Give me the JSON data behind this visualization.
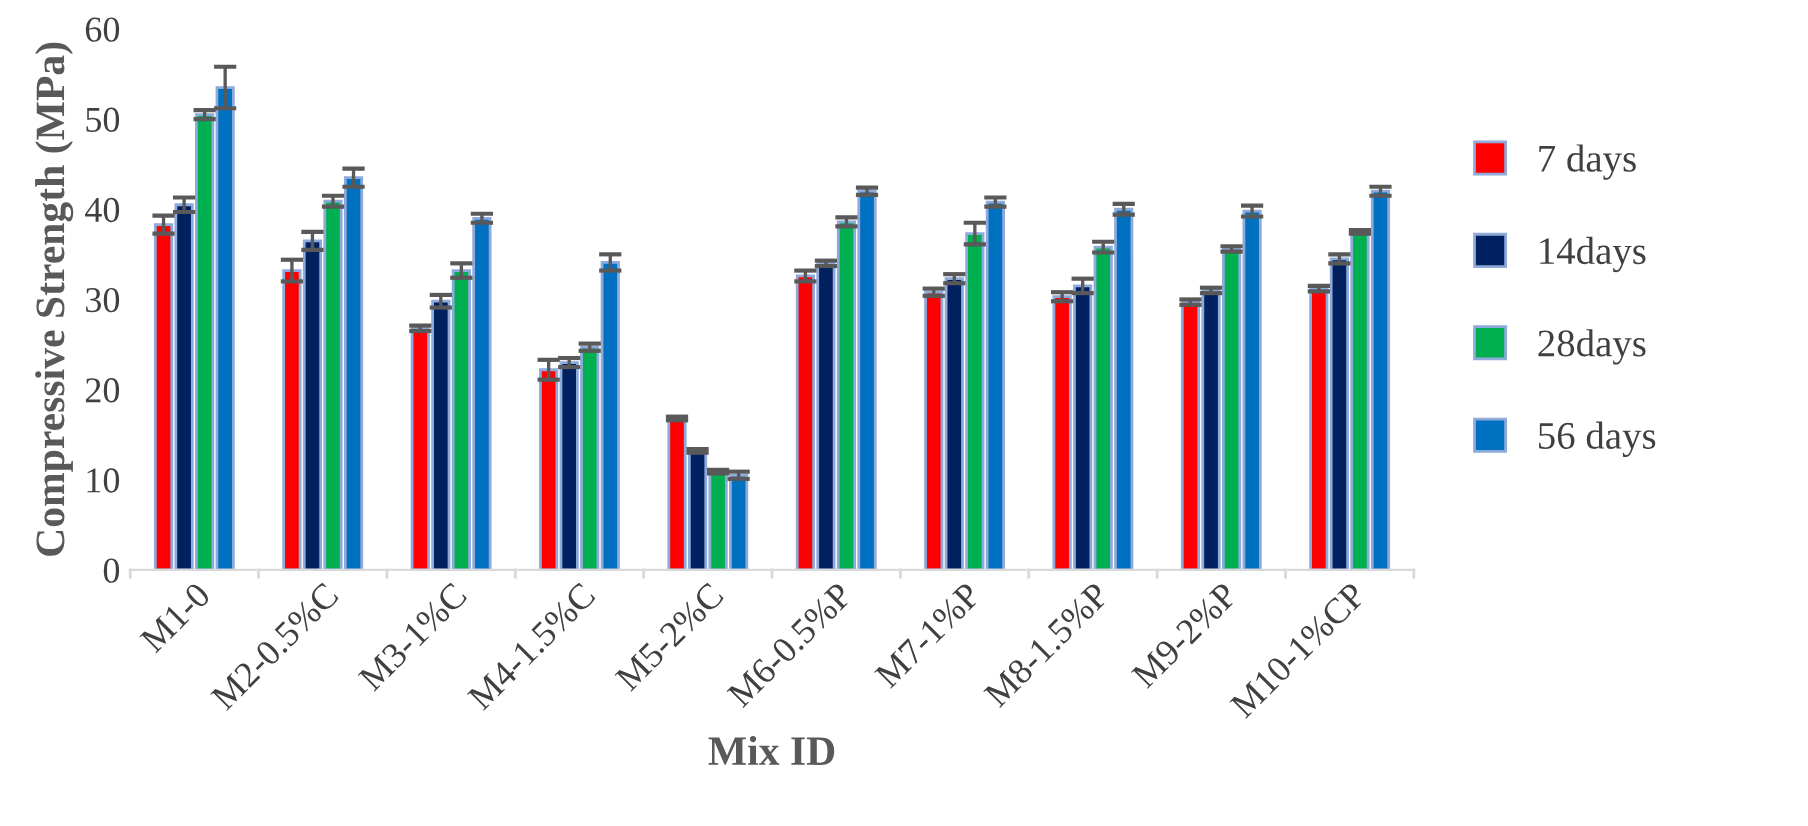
{
  "chart_data": {
    "type": "bar",
    "xlabel": "Mix ID",
    "ylabel": "Compressive Strength (MPa)",
    "categories": [
      "M1-0",
      "M2-0.5%C",
      "M3-1%C",
      "M4-1.5%C",
      "M5-2%C",
      "M6-0.5%P",
      "M7-1%P",
      "M8-1.5%P",
      "M9-2%P",
      "M10-1%CP"
    ],
    "series": [
      {
        "name": "7 days",
        "color": "#ff0000",
        "values": [
          38.3,
          33.2,
          26.8,
          22.2,
          16.8,
          32.6,
          30.8,
          30.3,
          29.7,
          31.2
        ],
        "errors": [
          1.0,
          1.2,
          0.3,
          1.1,
          0.2,
          0.6,
          0.4,
          0.5,
          0.3,
          0.3
        ]
      },
      {
        "name": "14days",
        "color": "#002060",
        "values": [
          40.5,
          36.5,
          29.8,
          23.0,
          13.2,
          34.0,
          32.3,
          31.5,
          31.0,
          34.5
        ],
        "errors": [
          0.8,
          1.0,
          0.7,
          0.5,
          0.2,
          0.3,
          0.5,
          0.8,
          0.3,
          0.5
        ]
      },
      {
        "name": "28days",
        "color": "#00b050",
        "values": [
          50.5,
          40.9,
          33.2,
          24.7,
          10.9,
          38.6,
          37.3,
          35.8,
          35.6,
          37.5
        ],
        "errors": [
          0.5,
          0.6,
          0.8,
          0.4,
          0.2,
          0.5,
          1.2,
          0.6,
          0.3,
          0.2
        ]
      },
      {
        "name": "56 days",
        "color": "#0070c0",
        "values": [
          53.5,
          43.5,
          39.0,
          34.1,
          10.5,
          42.0,
          40.8,
          40.0,
          39.8,
          42.0
        ],
        "errors": [
          2.3,
          1.0,
          0.5,
          0.9,
          0.4,
          0.4,
          0.5,
          0.6,
          0.6,
          0.5
        ]
      }
    ],
    "ylim": [
      0,
      60
    ],
    "yticks": [
      0,
      10,
      20,
      30,
      40,
      50,
      60
    ],
    "grid": false,
    "legend": "right"
  }
}
